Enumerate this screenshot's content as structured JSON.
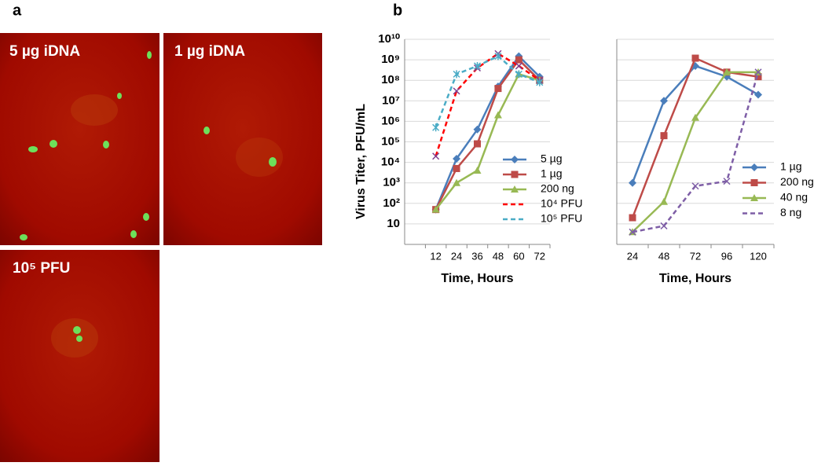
{
  "panel_a": {
    "label": "a",
    "images": [
      {
        "label": "5 µg iDNA"
      },
      {
        "label": "1 µg iDNA"
      },
      {
        "label": "10⁵ PFU"
      }
    ]
  },
  "panel_b": {
    "label": "b"
  },
  "chart_data": [
    {
      "type": "line",
      "y_label": "Virus Titer, PFU/mL",
      "x_label": "Time, Hours",
      "categories": [
        null,
        "12",
        "24",
        "36",
        "48",
        "60",
        "72"
      ],
      "log_scale": true,
      "ylim": [
        1,
        10000000000
      ],
      "yticks": [
        10,
        {
          "value": 100,
          "label": "10²"
        },
        {
          "value": 1000,
          "label": "10³"
        },
        {
          "value": 10000,
          "label": "10⁴"
        },
        {
          "value": 100000,
          "label": "10⁵"
        },
        {
          "value": 1000000,
          "label": "10⁶"
        },
        {
          "value": 10000000,
          "label": "10⁷"
        },
        {
          "value": 100000000,
          "label": "10⁸"
        },
        {
          "value": 1000000000,
          "label": "10⁹"
        },
        {
          "value": 10000000000,
          "label": "10¹⁰"
        }
      ],
      "grid": true,
      "legend": "right",
      "series": [
        {
          "name": "5 µg",
          "color": "#4a7ebb",
          "marker": "diamond",
          "dashed": false,
          "values": [
            null,
            50,
            15000,
            400000,
            50000000,
            1500000000,
            150000000
          ]
        },
        {
          "name": "1 µg",
          "color": "#be4b48",
          "marker": "square",
          "dashed": false,
          "values": [
            null,
            50,
            5000,
            80000,
            40000000,
            1000000000,
            100000000
          ]
        },
        {
          "name": "200 ng",
          "color": "#98b954",
          "marker": "triangle",
          "dashed": false,
          "values": [
            null,
            50,
            1000,
            4000,
            2000000,
            200000000,
            100000000
          ]
        },
        {
          "name": "10⁴ PFU",
          "color": "#ff0000",
          "marker": "x",
          "dashed": true,
          "values": [
            null,
            20000,
            30000000,
            400000000,
            2000000000,
            500000000,
            100000000
          ]
        },
        {
          "name": "10⁵ PFU",
          "color": "#4bacc6",
          "marker": "asterisk",
          "dashed": true,
          "values": [
            null,
            500000,
            200000000,
            500000000,
            1500000000,
            200000000,
            80000000
          ]
        }
      ]
    },
    {
      "type": "line",
      "x_label": "Time, Hours",
      "categories": [
        "24",
        "48",
        "72",
        "96",
        "120"
      ],
      "log_scale": true,
      "ylim": [
        1,
        10000000000
      ],
      "yticks": [
        10,
        100,
        1000,
        10000,
        100000,
        1000000,
        10000000,
        100000000,
        1000000000,
        10000000000
      ],
      "show_tick_labels": false,
      "grid": true,
      "legend": "right",
      "series": [
        {
          "name": "1 µg",
          "color": "#4a7ebb",
          "marker": "diamond",
          "dashed": false,
          "values": [
            1000,
            10000000,
            500000000,
            150000000,
            20000000
          ]
        },
        {
          "name": "200 ng",
          "color": "#be4b48",
          "marker": "square",
          "dashed": false,
          "values": [
            20,
            200000,
            1200000000,
            250000000,
            150000000
          ]
        },
        {
          "name": "40 ng",
          "color": "#98b954",
          "marker": "triangle",
          "dashed": false,
          "values": [
            4,
            120,
            1500000,
            250000000,
            250000000
          ]
        },
        {
          "name": "8 ng",
          "color": "#7e5ea6",
          "marker": "x",
          "dashed": true,
          "values": [
            4,
            8,
            700,
            1200,
            250000000
          ]
        }
      ]
    }
  ]
}
